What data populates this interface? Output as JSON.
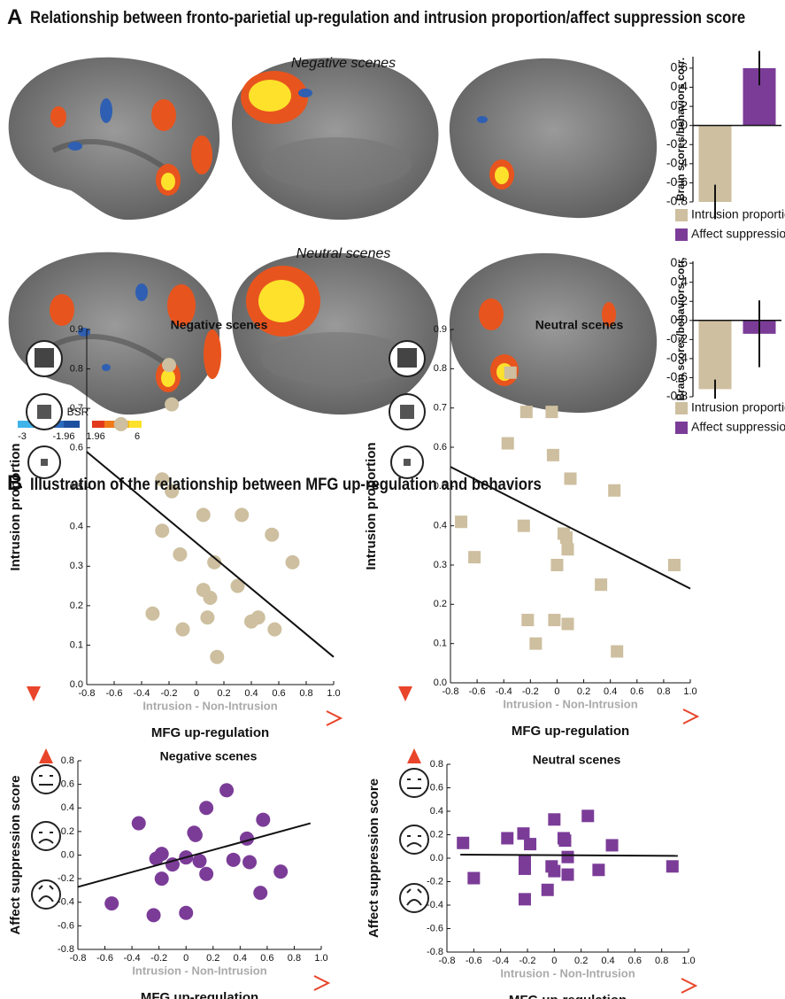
{
  "panel_a": {
    "letter": "A",
    "title": "Relationship between fronto-parietial up-regulation and intrusion proportion/affect suppression score"
  },
  "panel_b": {
    "letter": "B",
    "title": "Illustration of the relationship between MFG up-regulation and behaviors"
  },
  "scene_labels": [
    "Negative scenes",
    "Neutral scenes"
  ],
  "colorbar": {
    "title": "BSR",
    "ticks": [
      -3,
      -1.96,
      1.96,
      6
    ]
  },
  "chart_data": [
    {
      "type": "bar",
      "ylabel": "Brain scores/behaviors corr.",
      "categories": [
        "Intrusion proportion",
        "Affect suppression"
      ],
      "values": [
        -0.8,
        0.6
      ],
      "errors": [
        0.18,
        0.18
      ],
      "colors": [
        "#cdbf9f",
        "#7b3c98"
      ],
      "ylim": [
        -0.8,
        0.72
      ],
      "yticks": [
        -0.8,
        -0.6,
        -0.4,
        -0.2,
        {
          "value": 0,
          "label": "0.0"
        },
        0.2,
        0.4,
        0.6
      ]
    },
    {
      "type": "bar",
      "ylabel": "Brain scores/behaviors corr.",
      "categories": [
        "Intrusion proportion",
        "Affect suppression"
      ],
      "values": [
        -0.72,
        -0.14
      ],
      "errors": [
        0.1,
        0.35
      ],
      "colors": [
        "#cdbf9f",
        "#7b3c98"
      ],
      "ylim": [
        -0.8,
        0.62
      ],
      "yticks": [
        -0.8,
        -0.6,
        -0.4,
        -0.2,
        {
          "value": 0,
          "label": "0.0"
        },
        0.2,
        0.4,
        0.6
      ]
    },
    {
      "type": "scatter",
      "title": "Negative scenes",
      "xlabel": "Intrusion - Non-Intrusion",
      "ylabel": "Intrusion proportion",
      "arrow_label": "MFG up-regulation",
      "color": "#cdbf9f",
      "marker": "circle",
      "x": [
        -0.55,
        -0.2,
        -0.18,
        -0.25,
        -0.18,
        -0.25,
        -0.12,
        -0.32,
        -0.1,
        0.05,
        0.05,
        0.1,
        0.08,
        0.13,
        0.15,
        0.3,
        0.33,
        0.4,
        0.45,
        0.55,
        0.57,
        0.7
      ],
      "y": [
        0.66,
        0.81,
        0.71,
        0.52,
        0.49,
        0.39,
        0.33,
        0.18,
        0.14,
        0.43,
        0.24,
        0.22,
        0.17,
        0.31,
        0.07,
        0.25,
        0.43,
        0.16,
        0.17,
        0.38,
        0.14,
        0.31
      ],
      "fit": {
        "x": [
          -0.8,
          1.0
        ],
        "y": [
          0.59,
          0.07
        ]
      },
      "xlim": [
        -0.8,
        1.0
      ],
      "xticks": [
        -0.8,
        -0.6,
        -0.4,
        -0.2,
        0,
        0.2,
        0.4,
        0.6,
        0.8,
        {
          "value": 1,
          "label": "1.0"
        }
      ],
      "ylim": [
        0,
        0.9
      ],
      "yticks": [
        {
          "value": 0,
          "label": "0.0"
        },
        0.1,
        0.2,
        0.3,
        0.4,
        0.5,
        0.6,
        0.7,
        0.8,
        0.9
      ]
    },
    {
      "type": "scatter",
      "title": "Neutral scenes",
      "xlabel": "Intrusion - Non-Intrusion",
      "ylabel": "Intrusion proportion",
      "arrow_label": "MFG up-regulation",
      "color": "#cdbf9f",
      "marker": "square",
      "x": [
        -0.72,
        -0.62,
        -0.35,
        -0.37,
        -0.23,
        -0.25,
        -0.22,
        -0.16,
        -0.04,
        -0.03,
        -0.02,
        0.0,
        0.05,
        0.07,
        0.08,
        0.1,
        0.08,
        0.33,
        0.43,
        0.45,
        0.88
      ],
      "y": [
        0.41,
        0.32,
        0.79,
        0.61,
        0.69,
        0.4,
        0.16,
        0.1,
        0.69,
        0.58,
        0.16,
        0.3,
        0.38,
        0.37,
        0.34,
        0.52,
        0.15,
        0.25,
        0.49,
        0.08,
        0.3
      ],
      "fit": {
        "x": [
          -0.8,
          1.0
        ],
        "y": [
          0.55,
          0.24
        ]
      },
      "xlim": [
        -0.8,
        1.0
      ],
      "xticks": [
        -0.8,
        -0.6,
        -0.4,
        -0.2,
        0,
        0.2,
        0.4,
        0.6,
        0.8,
        {
          "value": 1,
          "label": "1.0"
        }
      ],
      "ylim": [
        0,
        0.9
      ],
      "yticks": [
        {
          "value": 0,
          "label": "0.0"
        },
        0.1,
        0.2,
        0.3,
        0.4,
        0.5,
        0.6,
        0.7,
        0.8,
        0.9
      ]
    },
    {
      "type": "scatter",
      "title": "Negative scenes",
      "xlabel": "Intrusion - Non-Intrusion",
      "ylabel": "Affect suppression score",
      "arrow_label": "MFG up-regulation",
      "color": "#7b3c98",
      "marker": "circle",
      "x": [
        -0.55,
        -0.35,
        -0.24,
        -0.22,
        -0.18,
        -0.18,
        -0.1,
        0.0,
        0.0,
        0.06,
        0.07,
        0.1,
        0.15,
        0.15,
        0.3,
        0.35,
        0.45,
        0.47,
        0.55,
        0.57,
        0.7
      ],
      "y": [
        -0.41,
        0.27,
        -0.51,
        -0.03,
        0.01,
        -0.2,
        -0.08,
        -0.49,
        -0.02,
        0.19,
        0.17,
        -0.05,
        -0.16,
        0.4,
        0.55,
        -0.04,
        0.14,
        -0.06,
        -0.32,
        0.3,
        -0.14
      ],
      "fit": {
        "x": [
          -0.8,
          0.92
        ],
        "y": [
          -0.27,
          0.27
        ]
      },
      "xlim": [
        -0.8,
        1.0
      ],
      "xticks": [
        -0.8,
        -0.6,
        -0.4,
        -0.2,
        0,
        0.2,
        0.4,
        0.6,
        0.8,
        {
          "value": 1,
          "label": "1.0"
        }
      ],
      "ylim": [
        -0.8,
        0.8
      ],
      "yticks": [
        -0.8,
        -0.6,
        -0.4,
        -0.2,
        {
          "value": 0,
          "label": "0.0"
        },
        0.2,
        0.4,
        0.6,
        0.8
      ]
    },
    {
      "type": "scatter",
      "title": "Neutral scenes",
      "xlabel": "Intrusion - Non-Intrusion",
      "ylabel": "Affect suppression score",
      "arrow_label": "MFG up-regulation",
      "color": "#7b3c98",
      "marker": "square",
      "x": [
        -0.68,
        -0.6,
        -0.35,
        -0.23,
        -0.22,
        -0.22,
        -0.22,
        -0.18,
        -0.05,
        -0.02,
        0.0,
        0.0,
        0.07,
        0.08,
        0.1,
        0.1,
        0.25,
        0.33,
        0.43,
        0.88
      ],
      "y": [
        0.13,
        -0.17,
        0.17,
        0.21,
        -0.02,
        -0.09,
        -0.35,
        0.12,
        -0.27,
        -0.07,
        -0.11,
        0.33,
        0.17,
        0.15,
        -0.14,
        0.01,
        0.36,
        -0.1,
        0.11,
        -0.07
      ],
      "fit": {
        "x": [
          -0.7,
          0.92
        ],
        "y": [
          0.03,
          0.02
        ]
      },
      "xlim": [
        -0.8,
        1.0
      ],
      "xticks": [
        -0.8,
        -0.6,
        -0.4,
        -0.2,
        0,
        0.2,
        0.4,
        0.6,
        0.8,
        {
          "value": 1,
          "label": "1.0"
        }
      ],
      "ylim": [
        -0.8,
        0.8
      ],
      "yticks": [
        -0.8,
        -0.6,
        -0.4,
        -0.2,
        {
          "value": 0,
          "label": "0.0"
        },
        0.2,
        0.4,
        0.6,
        0.8
      ]
    }
  ]
}
